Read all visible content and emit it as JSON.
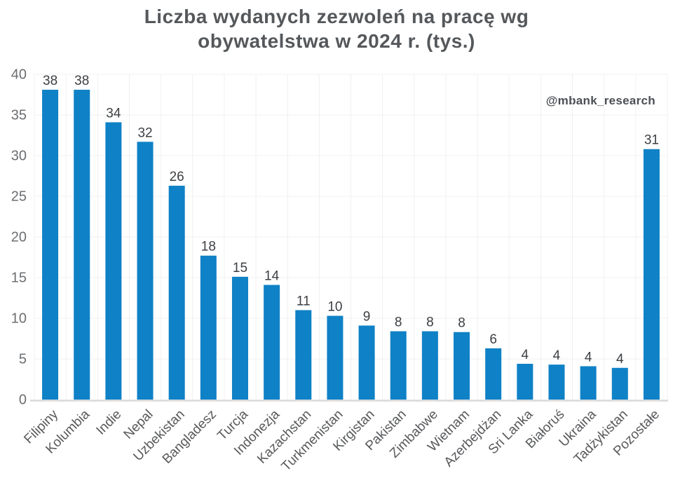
{
  "title": {
    "lines": [
      "Liczba wydanych zezwoleń na pracę wg",
      "obywatelstwa w 2024 r. (tys.)"
    ]
  },
  "watermark": "@mbank_research",
  "colors": {
    "bar": "#0F81C6",
    "title": "#55585B",
    "value_label": "#3C3F42",
    "y_tick_label": "#6B6E71",
    "x_tick_label": "#58595B",
    "gridline": "#F0F0F0",
    "axis_line": "#D8D8D8",
    "background": "#FFFFFF",
    "watermark": "#4B4F54"
  },
  "chart_data": {
    "type": "bar",
    "title": "Liczba wydanych zezwoleń na pracę wg obywatelstwa w 2024 r. (tys.)",
    "categories": [
      "Filipiny",
      "Kolumbia",
      "Indie",
      "Nepal",
      "Uzbekistan",
      "Bangladesz",
      "Turcja",
      "Indonezja",
      "Kazachstan",
      "Turkmenistan",
      "Kirgistan",
      "Pakistan",
      "Zimbabwe",
      "Wietnam",
      "Azerbejdżan",
      "Sri Lanka",
      "Białoruś",
      "Ukraina",
      "Tadżykistan",
      "Pozostałe"
    ],
    "values": [
      38.1,
      38.1,
      34.1,
      31.7,
      26.3,
      17.7,
      15.1,
      14.1,
      11.0,
      10.3,
      9.1,
      8.4,
      8.4,
      8.3,
      6.3,
      4.4,
      4.3,
      4.1,
      3.9,
      30.8
    ],
    "value_labels": [
      "38",
      "38",
      "34",
      "32",
      "26",
      "18",
      "15",
      "14",
      "11",
      "10",
      "9",
      "8",
      "8",
      "8",
      "6",
      "4",
      "4",
      "4",
      "4",
      "31"
    ],
    "xlabel": "",
    "ylabel": "",
    "ylim": [
      0,
      40
    ],
    "yticks": [
      0,
      5,
      10,
      15,
      20,
      25,
      30,
      35,
      40
    ],
    "grid": true,
    "legend": false,
    "x_tick_rotation": -45,
    "bar_color": "#0F81C6"
  }
}
